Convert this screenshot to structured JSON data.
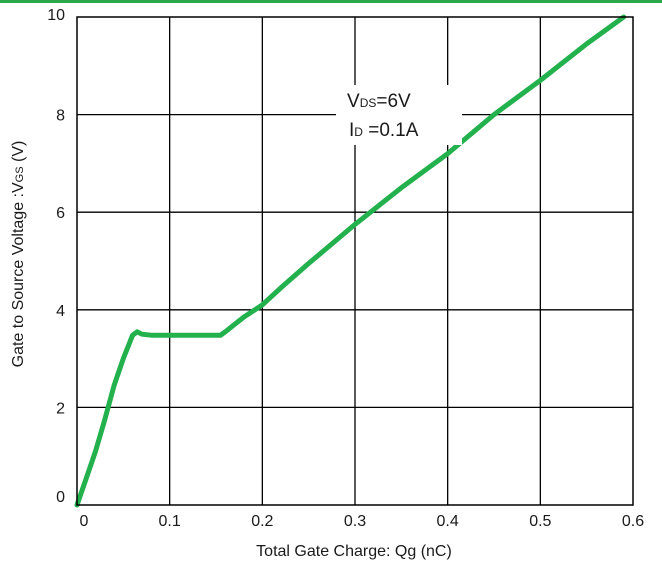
{
  "chart_data": {
    "type": "line",
    "xlabel": "Total Gate Charge: Qg (nC)",
    "ylabel": "Gate to Source Voltage :V",
    "ylabel_subscript": "GS",
    "ylabel_unit": " (V)",
    "xlim": [
      0,
      0.6
    ],
    "ylim": [
      0,
      10
    ],
    "x_ticks": [
      0,
      0.1,
      0.2,
      0.3,
      0.4,
      0.5,
      0.6
    ],
    "x_tick_labels": [
      "0",
      "0.1",
      "0.2",
      "0.3",
      "0.4",
      "0.5",
      "0.6"
    ],
    "y_ticks": [
      0,
      2,
      4,
      6,
      8,
      10
    ],
    "y_tick_labels": [
      "0",
      "2",
      "4",
      "6",
      "8",
      "10"
    ],
    "grid": true,
    "annotations": [
      {
        "main": "V",
        "sub": "DS",
        "rest": "=6V"
      },
      {
        "main": "I",
        "sub": "D",
        "rest": " =0.1A"
      }
    ],
    "series": [
      {
        "color": "#22b14c",
        "x": [
          0,
          0.01,
          0.02,
          0.03,
          0.04,
          0.05,
          0.06,
          0.065,
          0.07,
          0.08,
          0.1,
          0.12,
          0.14,
          0.155,
          0.16,
          0.17,
          0.18,
          0.2,
          0.22,
          0.25,
          0.3,
          0.35,
          0.4,
          0.45,
          0.5,
          0.55,
          0.59
        ],
        "y": [
          0,
          0.55,
          1.1,
          1.75,
          2.45,
          3.0,
          3.48,
          3.55,
          3.5,
          3.48,
          3.48,
          3.48,
          3.48,
          3.48,
          3.55,
          3.7,
          3.85,
          4.1,
          4.45,
          4.95,
          5.75,
          6.5,
          7.2,
          8.0,
          8.7,
          9.45,
          10.0
        ]
      }
    ]
  }
}
